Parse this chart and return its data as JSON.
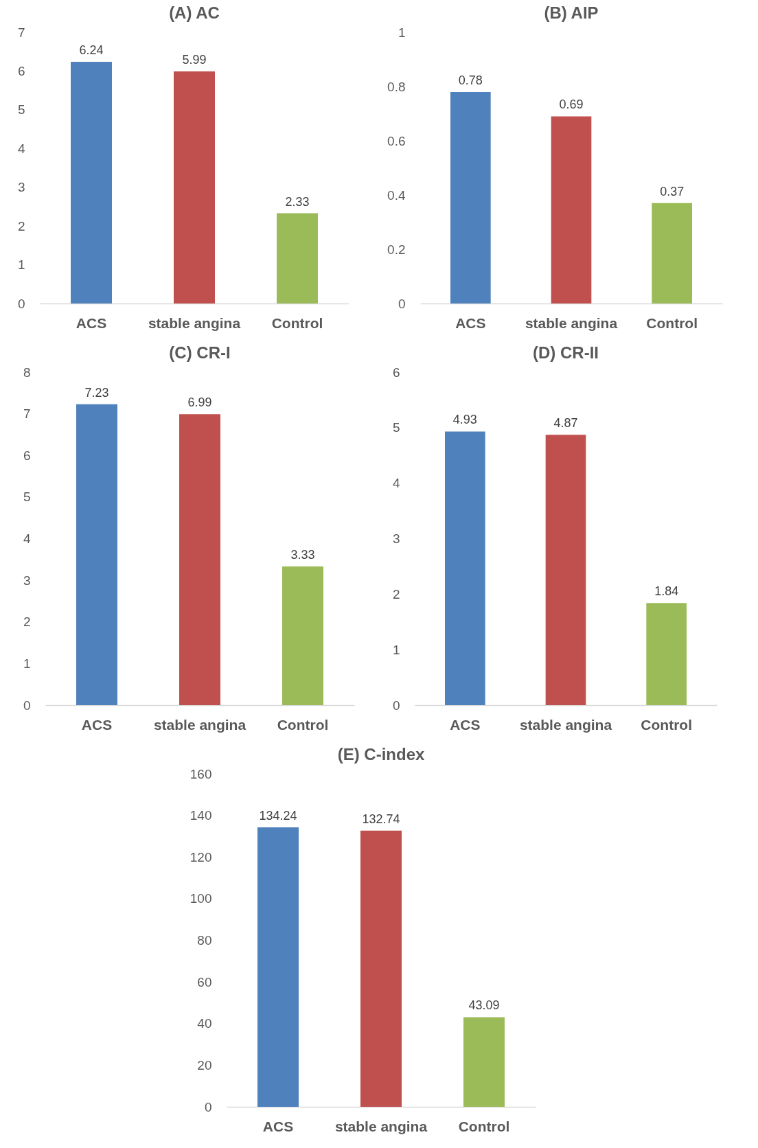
{
  "chart_data": [
    {
      "type": "bar",
      "title": "(A) AC",
      "categories": [
        "ACS",
        "stable angina",
        "Control"
      ],
      "values": [
        6.24,
        5.99,
        2.33
      ],
      "colors": [
        "#4f81bd",
        "#c0504d",
        "#9bbb59"
      ],
      "ylim": [
        0,
        7
      ],
      "yticks": [
        0,
        1,
        2,
        3,
        4,
        5,
        6,
        7
      ],
      "data_labels": true
    },
    {
      "type": "bar",
      "title": "(B) AIP",
      "categories": [
        "ACS",
        "stable angina",
        "Control"
      ],
      "values": [
        0.78,
        0.69,
        0.37
      ],
      "colors": [
        "#4f81bd",
        "#c0504d",
        "#9bbb59"
      ],
      "ylim": [
        0,
        1
      ],
      "yticks": [
        0,
        0.2,
        0.4,
        0.6,
        0.8,
        1
      ],
      "data_labels": true
    },
    {
      "type": "bar",
      "title": "(C) CR-I",
      "categories": [
        "ACS",
        "stable angina",
        "Control"
      ],
      "values": [
        7.23,
        6.99,
        3.33
      ],
      "colors": [
        "#4f81bd",
        "#c0504d",
        "#9bbb59"
      ],
      "ylim": [
        0,
        8
      ],
      "yticks": [
        0,
        1,
        2,
        3,
        4,
        5,
        6,
        7,
        8
      ],
      "data_labels": true
    },
    {
      "type": "bar",
      "title": "(D) CR-II",
      "categories": [
        "ACS",
        "stable angina",
        "Control"
      ],
      "values": [
        4.93,
        4.87,
        1.84
      ],
      "colors": [
        "#4f81bd",
        "#c0504d",
        "#9bbb59"
      ],
      "ylim": [
        0,
        6
      ],
      "yticks": [
        0,
        1,
        2,
        3,
        4,
        5,
        6
      ],
      "data_labels": true
    },
    {
      "type": "bar",
      "title": "(E) C-index",
      "categories": [
        "ACS",
        "stable angina",
        "Control"
      ],
      "values": [
        134.24,
        132.74,
        43.09
      ],
      "colors": [
        "#4f81bd",
        "#c0504d",
        "#9bbb59"
      ],
      "ylim": [
        0,
        160
      ],
      "yticks": [
        0,
        20,
        40,
        60,
        80,
        100,
        120,
        140,
        160
      ],
      "data_labels": true
    }
  ]
}
